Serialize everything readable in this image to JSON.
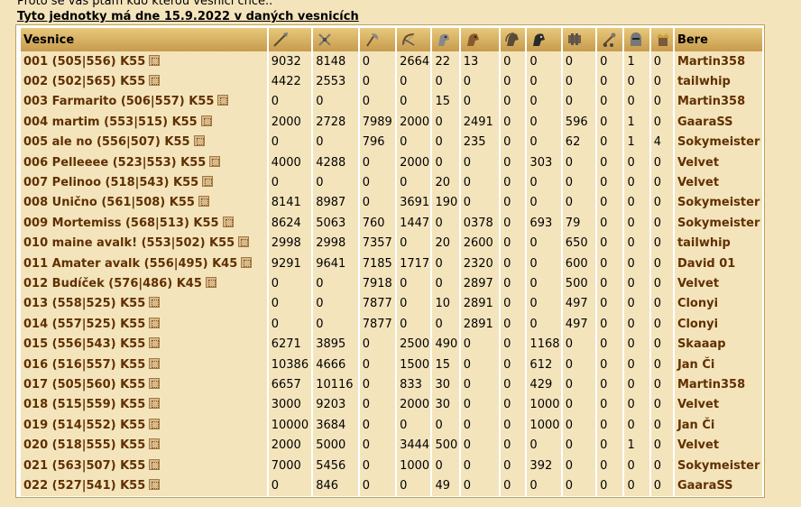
{
  "intro_text": "Proto se vás ptám kdo kterou vesnici chce..",
  "heading": "Tyto jednotky má dne 15.9.2022 v daných vesnicích",
  "table": {
    "village_header": "Vesnice",
    "player_header": "Bere",
    "unit_icons": [
      "spear-icon",
      "sword-icon",
      "axe-icon",
      "archer-icon",
      "scout-icon",
      "light-cavalry-icon",
      "mounted-archer-icon",
      "heavy-cavalry-icon",
      "ram-icon",
      "catapult-icon",
      "knight-icon",
      "noble-icon"
    ],
    "rows": [
      {
        "village": "001 (505|556) K55",
        "units": [
          "9032",
          "8148",
          "0",
          "2664",
          "22",
          "13",
          "0",
          "0",
          "0",
          "0",
          "1",
          "0"
        ],
        "player": "Martin358"
      },
      {
        "village": "002 (502|565) K55",
        "units": [
          "4422",
          "2553",
          "0",
          "0",
          "0",
          "0",
          "0",
          "0",
          "0",
          "0",
          "0",
          "0"
        ],
        "player": "tailwhip"
      },
      {
        "village": "003 Farmarito (506|557) K55",
        "units": [
          "0",
          "0",
          "0",
          "0",
          "15",
          "0",
          "0",
          "0",
          "0",
          "0",
          "0",
          "0"
        ],
        "player": "Martin358"
      },
      {
        "village": "004 martim (553|515) K55",
        "units": [
          "2000",
          "2728",
          "7989",
          "2000",
          "0",
          "2491",
          "0",
          "0",
          "596",
          "0",
          "1",
          "0"
        ],
        "player": "GaaraSS"
      },
      {
        "village": "005 ale no (556|507) K55",
        "units": [
          "0",
          "0",
          "796",
          "0",
          "0",
          "235",
          "0",
          "0",
          "62",
          "0",
          "1",
          "4"
        ],
        "player": "Sokymeister"
      },
      {
        "village": "006 Pelleeee (523|553) K55",
        "units": [
          "4000",
          "4288",
          "0",
          "2000",
          "0",
          "0",
          "0",
          "303",
          "0",
          "0",
          "0",
          "0"
        ],
        "player": "Velvet"
      },
      {
        "village": "007 Pelinoo (518|543) K55",
        "units": [
          "0",
          "0",
          "0",
          "0",
          "20",
          "0",
          "0",
          "0",
          "0",
          "0",
          "0",
          "0"
        ],
        "player": "Velvet"
      },
      {
        "village": "008 Unično (561|508) K55",
        "units": [
          "8141",
          "8987",
          "0",
          "3691",
          "190",
          "0",
          "0",
          "0",
          "0",
          "0",
          "0",
          "0"
        ],
        "player": "Sokymeister"
      },
      {
        "village": "009 Mortemiss (568|513) K55",
        "units": [
          "8624",
          "5063",
          "760",
          "1447",
          "0",
          "0378",
          "0",
          "693",
          "79",
          "0",
          "0",
          "0"
        ],
        "player": "Sokymeister"
      },
      {
        "village": "010 maine avalk! (553|502) K55",
        "units": [
          "2998",
          "2998",
          "7357",
          "0",
          "20",
          "2600",
          "0",
          "0",
          "650",
          "0",
          "0",
          "0"
        ],
        "player": "tailwhip"
      },
      {
        "village": "011 Amater avalk (556|495) K45",
        "units": [
          "9291",
          "9641",
          "7185",
          "1717",
          "0",
          "2320",
          "0",
          "0",
          "600",
          "0",
          "0",
          "0"
        ],
        "player": "David 01"
      },
      {
        "village": "012 Budíček (576|486) K45",
        "units": [
          "0",
          "0",
          "7918",
          "0",
          "0",
          "2897",
          "0",
          "0",
          "500",
          "0",
          "0",
          "0"
        ],
        "player": "Velvet"
      },
      {
        "village": "013 (558|525) K55",
        "units": [
          "0",
          "0",
          "7877",
          "0",
          "10",
          "2891",
          "0",
          "0",
          "497",
          "0",
          "0",
          "0"
        ],
        "player": "Clonyi"
      },
      {
        "village": "014 (557|525) K55",
        "units": [
          "0",
          "0",
          "7877",
          "0",
          "0",
          "2891",
          "0",
          "0",
          "497",
          "0",
          "0",
          "0"
        ],
        "player": "Clonyi"
      },
      {
        "village": "015 (556|543) K55",
        "units": [
          "6271",
          "3895",
          "0",
          "2500",
          "490",
          "0",
          "0",
          "1168",
          "0",
          "0",
          "0",
          "0"
        ],
        "player": "Skaaap"
      },
      {
        "village": "016 (516|557) K55",
        "units": [
          "10386",
          "4666",
          "0",
          "1500",
          "15",
          "0",
          "0",
          "612",
          "0",
          "0",
          "0",
          "0"
        ],
        "player": "Jan Či"
      },
      {
        "village": "017 (505|560) K55",
        "units": [
          "6657",
          "10116",
          "0",
          "833",
          "30",
          "0",
          "0",
          "429",
          "0",
          "0",
          "0",
          "0"
        ],
        "player": "Martin358"
      },
      {
        "village": "018 (515|559) K55",
        "units": [
          "3000",
          "9203",
          "0",
          "2000",
          "30",
          "0",
          "0",
          "1000",
          "0",
          "0",
          "0",
          "0"
        ],
        "player": "Velvet"
      },
      {
        "village": "019 (514|552) K55",
        "units": [
          "10000",
          "3684",
          "0",
          "0",
          "0",
          "0",
          "0",
          "1000",
          "0",
          "0",
          "0",
          "0"
        ],
        "player": "Jan Či"
      },
      {
        "village": "020 (518|555) K55",
        "units": [
          "2000",
          "5000",
          "0",
          "3444",
          "500",
          "0",
          "0",
          "0",
          "0",
          "0",
          "1",
          "0"
        ],
        "player": "Velvet"
      },
      {
        "village": "021 (563|507) K55",
        "units": [
          "7000",
          "5456",
          "0",
          "1000",
          "0",
          "0",
          "0",
          "392",
          "0",
          "0",
          "0",
          "0"
        ],
        "player": "Sokymeister"
      },
      {
        "village": "022 (527|541) K55",
        "units": [
          "0",
          "846",
          "0",
          "0",
          "49",
          "0",
          "0",
          "0",
          "0",
          "0",
          "0",
          "0"
        ],
        "player": "GaaraSS"
      }
    ]
  }
}
